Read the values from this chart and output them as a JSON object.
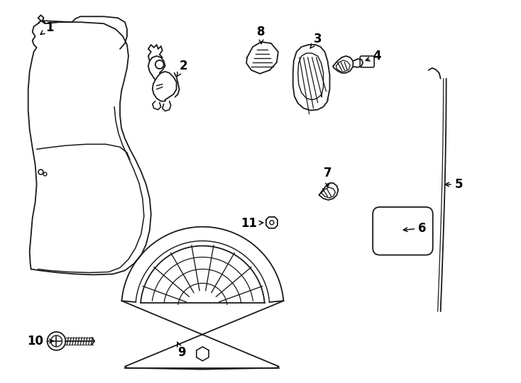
{
  "background_color": "#ffffff",
  "line_color": "#1a1a1a",
  "line_width": 1.3,
  "fig_width": 7.34,
  "fig_height": 5.4
}
